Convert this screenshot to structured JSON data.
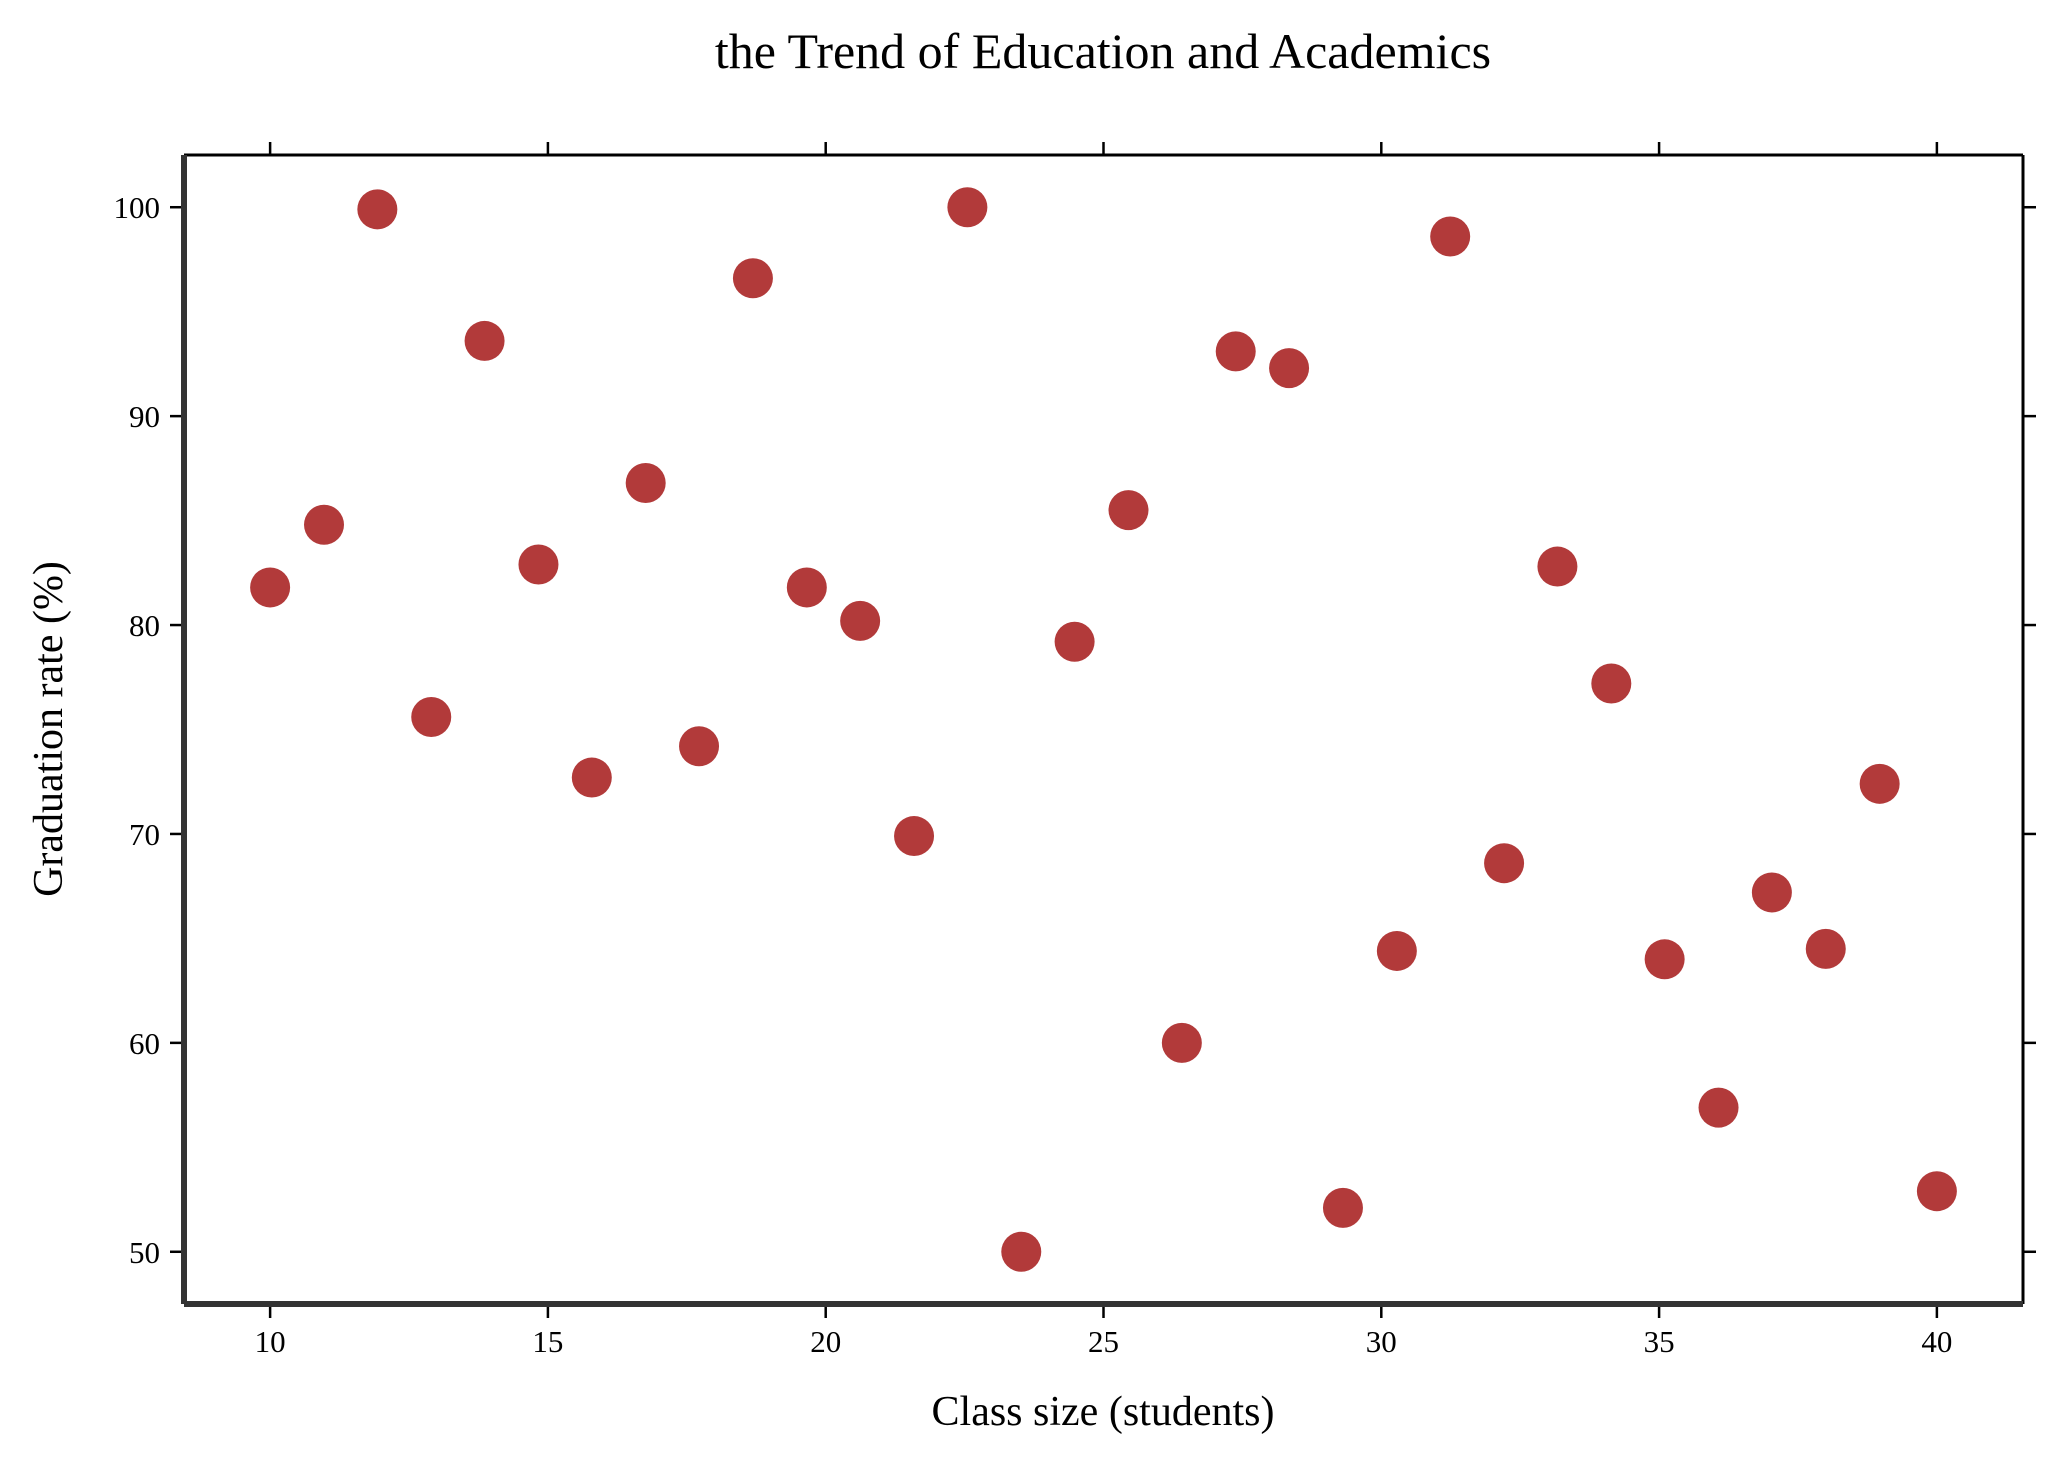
{
  "chart_data": {
    "type": "scatter",
    "title": "the Trend of Education and Academics",
    "xlabel": "Class size (students)",
    "ylabel": "Graduation rate (%)",
    "xlim": [
      8.45,
      41.55
    ],
    "ylim": [
      47.5,
      102.5
    ],
    "xticks": [
      10,
      15,
      20,
      25,
      30,
      35,
      40
    ],
    "yticks": [
      50,
      60,
      70,
      80,
      90,
      100
    ],
    "grid": false,
    "legend": "none",
    "marker_color": "#b23a3a",
    "series": [
      {
        "x": [
          10,
          10.97,
          11.93,
          12.9,
          13.86,
          14.83,
          15.79,
          16.76,
          17.72,
          18.69,
          19.66,
          20.62,
          21.59,
          22.55,
          23.52,
          24.48,
          25.45,
          26.41,
          27.38,
          28.34,
          29.31,
          30.28,
          31.24,
          32.21,
          33.17,
          34.14,
          35.1,
          36.07,
          37.03,
          38,
          38.97,
          40
        ],
        "y": [
          81.8,
          84.8,
          99.9,
          75.6,
          93.6,
          82.9,
          72.7,
          86.8,
          74.2,
          96.6,
          81.8,
          80.2,
          69.9,
          100,
          50,
          79.2,
          85.5,
          60,
          93.1,
          92.3,
          52.1,
          64.4,
          98.6,
          68.6,
          82.8,
          77.2,
          64,
          56.9,
          67.2,
          64.5,
          72.4,
          52.9
        ]
      }
    ]
  }
}
